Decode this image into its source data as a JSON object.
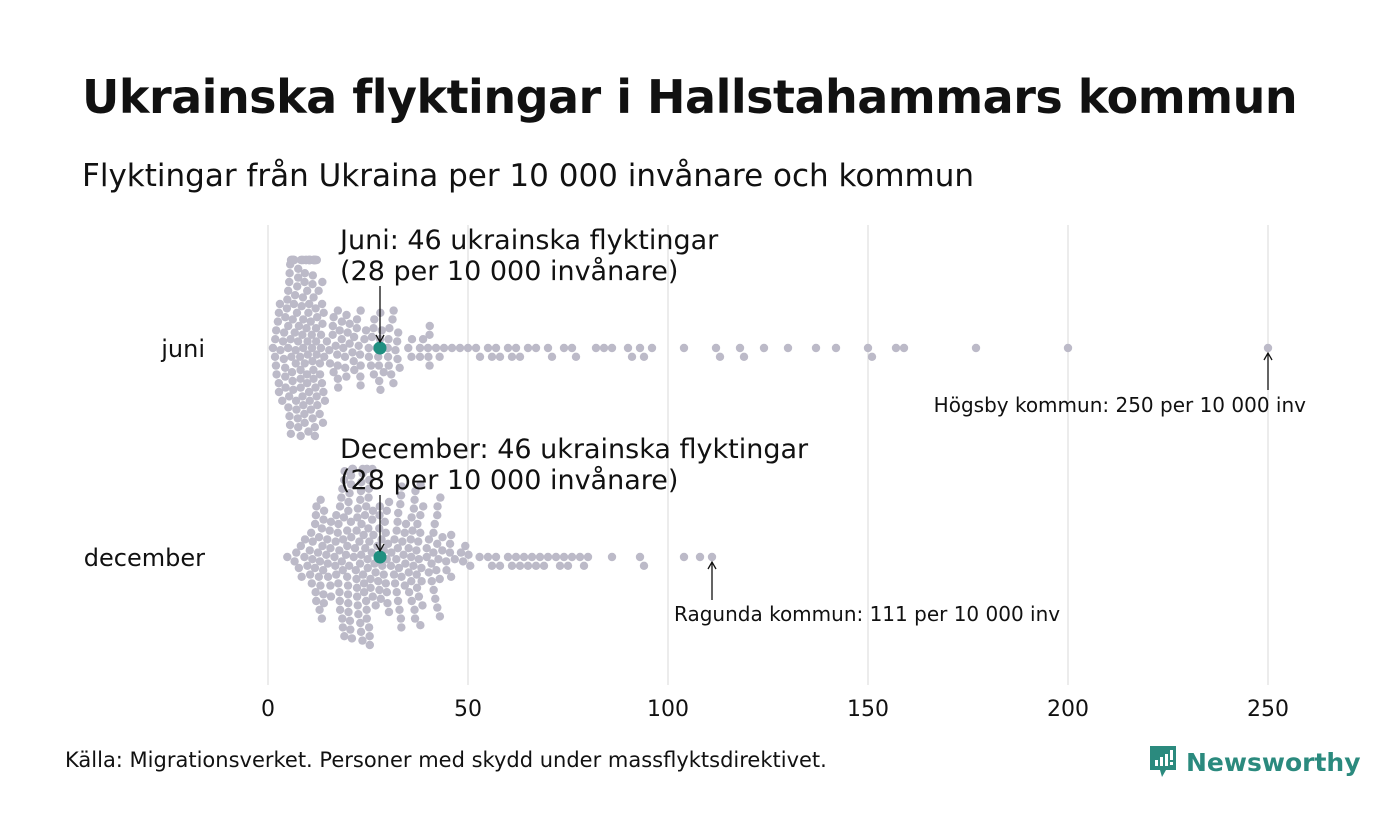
{
  "header": {
    "title": "Ukrainska flyktingar i Hallstahammars kommun",
    "subtitle": "Flyktingar från Ukraina per 10 000 invånare och kommun"
  },
  "footer": {
    "source": "Källa: Migrationsverket. Personer med skydd under massflyktsdirektivet.",
    "logo_text": "Newsworthy",
    "logo_icon": "bar-chart-speech-bubble-icon"
  },
  "colors": {
    "dot": "#bcbac8",
    "highlight": "#1f8f80",
    "grid": "#d9d9d9",
    "brand": "#2b8a7e"
  },
  "chart_data": {
    "type": "beeswarm",
    "title": "Ukrainska flyktingar i Hallstahammars kommun",
    "subtitle": "Flyktingar från Ukraina per 10 000 invånare och kommun",
    "xlabel": "",
    "ylabel": "",
    "xlim": [
      0,
      250
    ],
    "x_ticks": [
      0,
      50,
      100,
      150,
      200,
      250
    ],
    "grid": true,
    "categories": [
      "juni",
      "december"
    ],
    "series": [
      {
        "name": "juni",
        "highlight": {
          "label": "Hallstahammar",
          "value": 28
        },
        "outliers": [
          36,
          38,
          40,
          42,
          44,
          46,
          48,
          50,
          52,
          53,
          55,
          56,
          57,
          58,
          60,
          61,
          62,
          63,
          65,
          67,
          70,
          71,
          74,
          76,
          77,
          82,
          84,
          86,
          90,
          91,
          93,
          94,
          96,
          104,
          112,
          113,
          118,
          119,
          124,
          130,
          137,
          142,
          150,
          151,
          157,
          159,
          177,
          200,
          250
        ],
        "bulk": {
          "min": 0,
          "peak": 12,
          "max": 46,
          "count": 230
        }
      },
      {
        "name": "december",
        "highlight": {
          "label": "Hallstahammar",
          "value": 28
        },
        "outliers": [
          55,
          56,
          57,
          58,
          60,
          61,
          62,
          63,
          64,
          65,
          66,
          67,
          68,
          69,
          70,
          72,
          73,
          74,
          75,
          76,
          78,
          79,
          80,
          86,
          93,
          94,
          104,
          108,
          111
        ],
        "bulk": {
          "min": 4,
          "peak": 26,
          "max": 54,
          "count": 260
        }
      }
    ],
    "annotations": [
      {
        "series": "juni",
        "value": 28,
        "lines": [
          "Juni: 46 ukrainska flyktingar",
          "(28 per 10 000 invånare)"
        ]
      },
      {
        "series": "december",
        "value": 28,
        "lines": [
          "December: 46 ukrainska flyktingar",
          "(28 per 10 000 invånare)"
        ]
      },
      {
        "series": "juni",
        "value": 250,
        "text": "Högsby kommun: 250 per 10 000 inv"
      },
      {
        "series": "december",
        "value": 111,
        "text": "Ragunda kommun: 111 per 10 000 inv"
      }
    ]
  }
}
